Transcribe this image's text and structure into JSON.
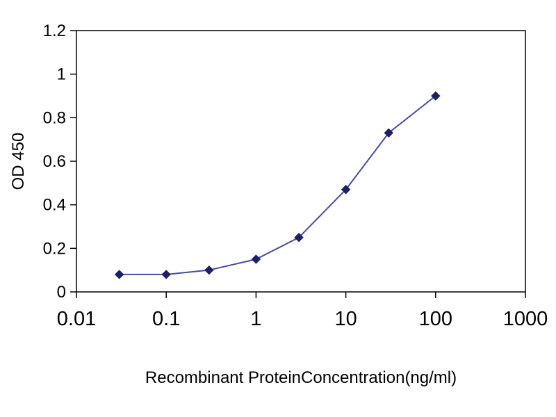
{
  "chart_data": {
    "type": "line",
    "title": "",
    "xlabel": "Recombinant ProteinConcentration(ng/ml)",
    "ylabel": "OD 450",
    "x_scale": "log",
    "xlim": [
      0.01,
      1000
    ],
    "ylim": [
      0,
      1.2
    ],
    "x_ticks": [
      "0.01",
      "0.1",
      "1",
      "10",
      "100",
      "1000"
    ],
    "y_ticks": [
      "0",
      "0.2",
      "0.4",
      "0.6",
      "0.8",
      "1",
      "1.2"
    ],
    "x": [
      0.03,
      0.1,
      0.3,
      1,
      3,
      10,
      30,
      100
    ],
    "y": [
      0.08,
      0.08,
      0.1,
      0.15,
      0.25,
      0.47,
      0.73,
      0.9
    ],
    "grid": false,
    "legend": false,
    "line_color": "#4a4a9c",
    "marker_color": "#1f1f66",
    "marker": "diamond",
    "axis_color": "#000000",
    "background_color": "#ffffff"
  }
}
